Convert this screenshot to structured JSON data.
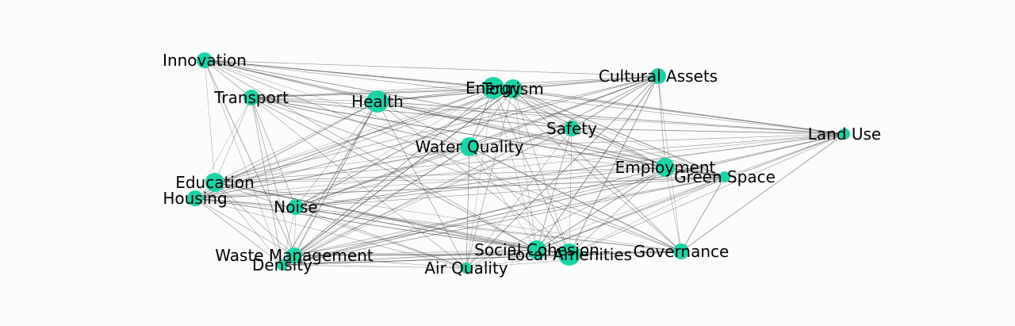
{
  "graph": {
    "node_color": "#1bd3a6",
    "edge_color": "#3a3a3a",
    "background": "#fcfcfc",
    "nodes": [
      {
        "id": "innovation",
        "label": "Innovation",
        "weight": 2
      },
      {
        "id": "transport",
        "label": "Transport",
        "weight": 2
      },
      {
        "id": "health",
        "label": "Health",
        "weight": 4
      },
      {
        "id": "energy",
        "label": "Energy",
        "weight": 4
      },
      {
        "id": "tourism",
        "label": "Tourism",
        "weight": 3
      },
      {
        "id": "cultural_assets",
        "label": "Cultural Assets",
        "weight": 2
      },
      {
        "id": "safety",
        "label": "Safety",
        "weight": 2
      },
      {
        "id": "water_quality",
        "label": "Water Quality",
        "weight": 3
      },
      {
        "id": "land_use",
        "label": "Land Use",
        "weight": 1
      },
      {
        "id": "employment",
        "label": "Employment",
        "weight": 3
      },
      {
        "id": "green_space",
        "label": "Green Space",
        "weight": 1
      },
      {
        "id": "education",
        "label": "Education",
        "weight": 3
      },
      {
        "id": "housing",
        "label": "Housing",
        "weight": 2
      },
      {
        "id": "noise",
        "label": "Noise",
        "weight": 2
      },
      {
        "id": "social_cohesion",
        "label": "Social Cohesion",
        "weight": 3
      },
      {
        "id": "local_amenities",
        "label": "Local Amenities",
        "weight": 4
      },
      {
        "id": "governance",
        "label": "Governance",
        "weight": 2
      },
      {
        "id": "waste_management",
        "label": "Waste Management",
        "weight": 2
      },
      {
        "id": "density",
        "label": "Density",
        "weight": 1
      },
      {
        "id": "air_quality",
        "label": "Air Quality",
        "weight": 1
      }
    ]
  }
}
